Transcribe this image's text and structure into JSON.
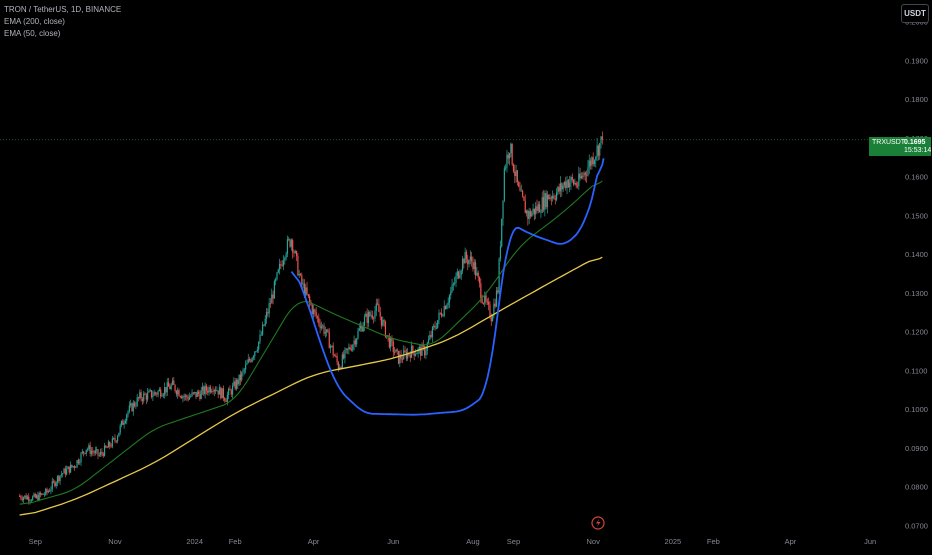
{
  "header": {
    "title": "TRON / TetherUS, 1D, BINANCE",
    "indicator_1": "EMA (200, close)",
    "indicator_2": "EMA (50, close)"
  },
  "currency_button": "USDT",
  "price_label": {
    "symbol": "TRXUSDT",
    "price": "0.1695",
    "countdown": "15:53:14"
  },
  "colors": {
    "background": "#000000",
    "up": "#26a69a",
    "down": "#ef5350",
    "ema50": "#1f7a1f",
    "ema200": "#e6c84a",
    "drawing": "#2962ff",
    "price_badge": "#1a7f37"
  },
  "chart_data": {
    "type": "candlestick",
    "title": "TRON / TetherUS, 1D, BINANCE",
    "ylim": [
      0.068,
      0.2035
    ],
    "y_ticks": [
      "0.2000",
      "0.1900",
      "0.1800",
      "0.1700",
      "0.1600",
      "0.1500",
      "0.1400",
      "0.1300",
      "0.1200",
      "0.1100",
      "0.1000",
      "0.0900",
      "0.0800",
      "0.0700"
    ],
    "x_ticks": [
      "Sep",
      "Nov",
      "2024",
      "Feb",
      "Apr",
      "Jun",
      "Aug",
      "Sep",
      "Nov",
      "2025",
      "Feb",
      "Apr",
      "Jun"
    ],
    "last_price": 0.1695,
    "price_path": [
      [
        "2023-08-20",
        0.0775
      ],
      [
        "2023-09-01",
        0.077
      ],
      [
        "2023-09-10",
        0.0785
      ],
      [
        "2023-09-20",
        0.083
      ],
      [
        "2023-10-01",
        0.0855
      ],
      [
        "2023-10-10",
        0.09
      ],
      [
        "2023-10-20",
        0.088
      ],
      [
        "2023-11-01",
        0.092
      ],
      [
        "2023-11-10",
        0.099
      ],
      [
        "2023-11-20",
        0.103
      ],
      [
        "2023-12-01",
        0.104
      ],
      [
        "2023-12-15",
        0.106
      ],
      [
        "2023-12-25",
        0.103
      ],
      [
        "2024-01-05",
        0.104
      ],
      [
        "2024-01-15",
        0.106
      ],
      [
        "2024-01-25",
        0.103
      ],
      [
        "2024-02-05",
        0.108
      ],
      [
        "2024-02-20",
        0.118
      ],
      [
        "2024-03-01",
        0.13
      ],
      [
        "2024-03-10",
        0.141
      ],
      [
        "2024-03-15",
        0.144
      ],
      [
        "2024-03-22",
        0.133
      ],
      [
        "2024-04-01",
        0.125
      ],
      [
        "2024-04-10",
        0.12
      ],
      [
        "2024-04-20",
        0.111
      ],
      [
        "2024-05-01",
        0.117
      ],
      [
        "2024-05-10",
        0.123
      ],
      [
        "2024-05-20",
        0.126
      ],
      [
        "2024-05-28",
        0.118
      ],
      [
        "2024-06-05",
        0.113
      ],
      [
        "2024-06-15",
        0.115
      ],
      [
        "2024-06-25",
        0.115
      ],
      [
        "2024-07-05",
        0.123
      ],
      [
        "2024-07-15",
        0.13
      ],
      [
        "2024-07-25",
        0.139
      ],
      [
        "2024-08-01",
        0.138
      ],
      [
        "2024-08-08",
        0.129
      ],
      [
        "2024-08-15",
        0.124
      ],
      [
        "2024-08-20",
        0.131
      ],
      [
        "2024-08-25",
        0.162
      ],
      [
        "2024-08-29",
        0.168
      ],
      [
        "2024-09-05",
        0.156
      ],
      [
        "2024-09-12",
        0.15
      ],
      [
        "2024-09-20",
        0.152
      ],
      [
        "2024-09-28",
        0.155
      ],
      [
        "2024-10-05",
        0.156
      ],
      [
        "2024-10-12",
        0.159
      ],
      [
        "2024-10-20",
        0.158
      ],
      [
        "2024-10-27",
        0.162
      ],
      [
        "2024-11-04",
        0.167
      ],
      [
        "2024-11-08",
        0.1695
      ]
    ],
    "ema_200": [
      [
        "2023-08-20",
        0.072
      ],
      [
        "2023-10-01",
        0.0765
      ],
      [
        "2023-12-01",
        0.086
      ],
      [
        "2024-02-01",
        0.099
      ],
      [
        "2024-04-01",
        0.109
      ],
      [
        "2024-06-01",
        0.113
      ],
      [
        "2024-07-15",
        0.118
      ],
      [
        "2024-08-25",
        0.126
      ],
      [
        "2024-10-01",
        0.133
      ],
      [
        "2024-11-08",
        0.14
      ]
    ],
    "ema_50": [
      [
        "2023-08-20",
        0.075
      ],
      [
        "2023-10-01",
        0.079
      ],
      [
        "2023-12-01",
        0.095
      ],
      [
        "2024-02-01",
        0.102
      ],
      [
        "2024-03-20",
        0.129
      ],
      [
        "2024-04-20",
        0.124
      ],
      [
        "2024-06-01",
        0.118
      ],
      [
        "2024-07-01",
        0.116
      ],
      [
        "2024-08-10",
        0.129
      ],
      [
        "2024-09-05",
        0.142
      ],
      [
        "2024-10-10",
        0.151
      ],
      [
        "2024-11-08",
        0.16
      ]
    ],
    "drawing_curve": [
      [
        "2024-03-15",
        0.138
      ],
      [
        "2024-03-28",
        0.127
      ],
      [
        "2024-04-08",
        0.115
      ],
      [
        "2024-04-20",
        0.105
      ],
      [
        "2024-05-10",
        0.0988
      ],
      [
        "2024-06-20",
        0.0985
      ],
      [
        "2024-07-25",
        0.0995
      ],
      [
        "2024-08-12",
        0.104
      ],
      [
        "2024-08-22",
        0.13
      ],
      [
        "2024-08-29",
        0.148
      ],
      [
        "2024-09-15",
        0.145
      ],
      [
        "2024-10-10",
        0.142
      ],
      [
        "2024-10-25",
        0.147
      ],
      [
        "2024-11-05",
        0.16
      ],
      [
        "2024-11-09",
        0.17
      ]
    ]
  }
}
